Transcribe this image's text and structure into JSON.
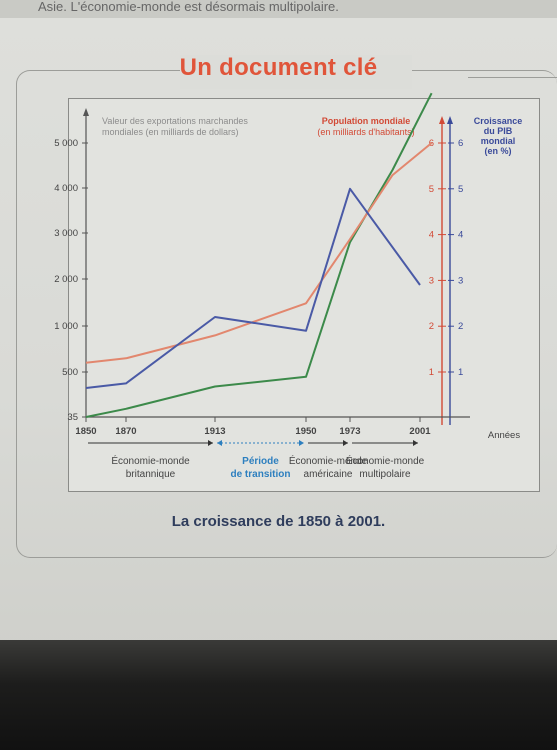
{
  "page": {
    "top_text": "Asie. L'économie-monde est désormais multipolaire.",
    "heading": "Un document clé",
    "caption": "La croissance de 1850 à 2001."
  },
  "chart_data": {
    "type": "line",
    "x_label": "Années",
    "x_ticks": [
      1850,
      1870,
      1913,
      1950,
      1973,
      2001
    ],
    "left_axis": {
      "label_lines": [
        "Valeur des exportations marchandes",
        "mondiales (en milliards de dollars)"
      ],
      "ticks": [
        35,
        500,
        1000,
        2000,
        3000,
        4000,
        5000
      ],
      "tick_labels": [
        "35",
        "500",
        "1 000",
        "2 000",
        "3 000",
        "4 000",
        "5 000"
      ]
    },
    "red_axis": {
      "label_lines": [
        "Population mondiale",
        "(en milliards d'habitants)"
      ],
      "ticks": [
        "1",
        "2",
        "3",
        "4",
        "5",
        "6"
      ],
      "color": "#d24a36"
    },
    "blue_axis": {
      "label_lines": [
        "Croissance",
        "du PIB",
        "mondial",
        "(en %)"
      ],
      "ticks": [
        "1",
        "2",
        "3",
        "4",
        "5",
        "6"
      ],
      "color": "#3a4a9a"
    },
    "series": [
      {
        "key": "exports",
        "axis": "left",
        "color": "#3c8a4a",
        "x": [
          1850,
          1870,
          1913,
          1950,
          1973,
          1990,
          2005
        ],
        "y": [
          35,
          120,
          350,
          450,
          2800,
          4400,
          6200
        ]
      },
      {
        "key": "population",
        "axis": "red",
        "color": "#e2876e",
        "x": [
          1850,
          1870,
          1913,
          1950,
          1973,
          1990,
          2005
        ],
        "y": [
          1.2,
          1.3,
          1.8,
          2.5,
          3.9,
          5.3,
          6.0
        ]
      },
      {
        "key": "gdp_growth",
        "axis": "blue",
        "color": "#4a5aa6",
        "x": [
          1850,
          1870,
          1913,
          1950,
          1973,
          2001
        ],
        "y": [
          0.65,
          0.75,
          2.2,
          1.9,
          5.0,
          2.9
        ]
      }
    ],
    "periods": [
      {
        "lines": [
          "Économie-monde",
          "britannique"
        ],
        "from": 1850,
        "to": 1913,
        "style": "solid"
      },
      {
        "lines": [
          "Période",
          "de transition"
        ],
        "from": 1913,
        "to": 1950,
        "style": "dotted"
      },
      {
        "lines": [
          "Économie-monde",
          "américaine"
        ],
        "from": 1950,
        "to": 1973,
        "style": "solid"
      },
      {
        "lines": [
          "Économie-monde",
          "multipolaire"
        ],
        "from": 1973,
        "to": 2001,
        "style": "solid"
      }
    ]
  }
}
